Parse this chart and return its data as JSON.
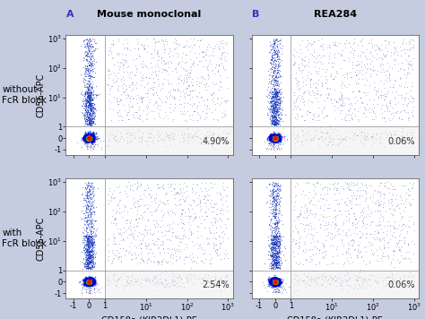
{
  "background_color": "#c5cce0",
  "plot_bg_color": "#ffffff",
  "title_A": "Mouse monoclonal",
  "title_B": "REA284",
  "label_A": "A",
  "label_B": "B",
  "row_labels": [
    "without\nFcR block",
    "with\nFcR block"
  ],
  "xlabel": "CD158a (KIR2DL1)-PE",
  "ylabel": "CD56-APC",
  "percentages": [
    [
      "4.90%",
      "0.06%"
    ],
    [
      "2.54%",
      "0.06%"
    ]
  ],
  "dot_color": "#1a2a9a",
  "gate_edge_color": "#999999",
  "gate_fill_color": "#e8e8e8",
  "label_color": "#3333bb",
  "title_fontsize": 8,
  "label_fontsize": 8,
  "tick_fontsize": 6,
  "axis_label_fontsize": 7,
  "percent_fontsize": 7,
  "row_label_fontsize": 7.5
}
